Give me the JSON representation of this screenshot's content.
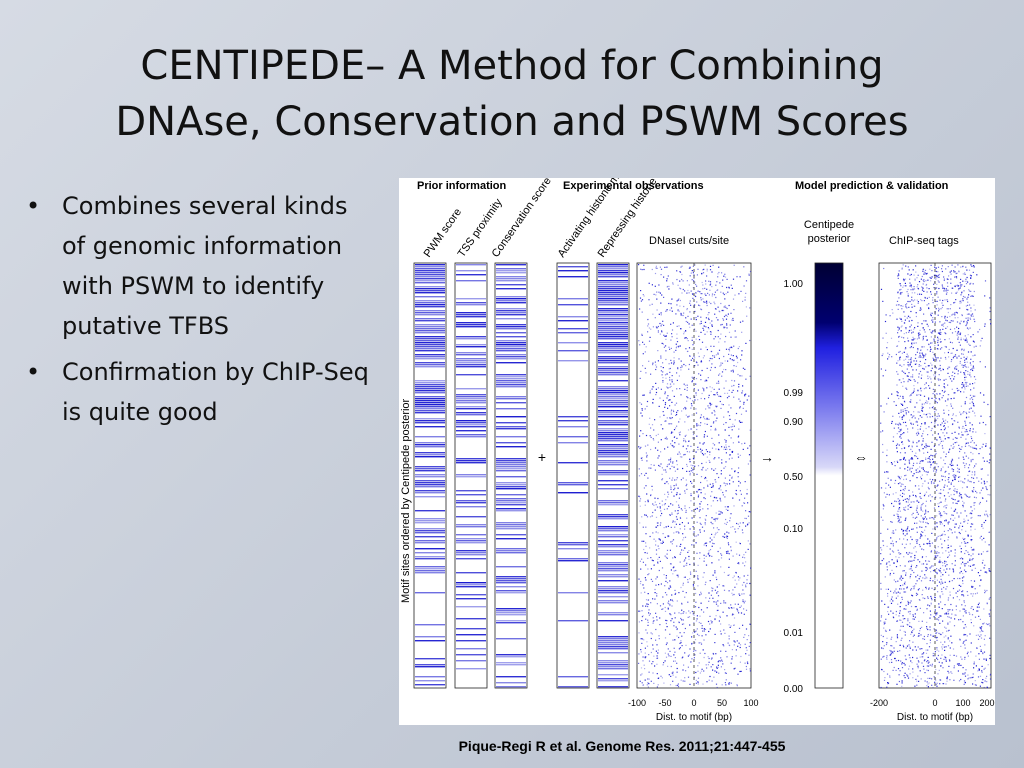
{
  "slide": {
    "title_line1": "CENTIPEDE– A Method for Combining",
    "title_line2": "DNAse, Conservation and PSWM Scores",
    "bullets": [
      "Combines several kinds of genomic information with PSWM to identify putative TFBS",
      "Confirmation by ChIP-Seq is quite good"
    ],
    "citation": "Pique-Regi R et al. Genome Res. 2011;21:447-455"
  },
  "figure": {
    "sections": [
      "Prior information",
      "Experimental observations",
      "Model prediction & validation"
    ],
    "columns": [
      "PWM score",
      "TSS proximity",
      "Conservation score",
      "Activating histone marks",
      "Repressing histone marks"
    ],
    "dnase_label": "DNaseI cuts/site",
    "posterior_label_1": "Centipede",
    "posterior_label_2": "posterior",
    "chip_label": "ChIP-seq tags",
    "y_axis_label": "Motif sites ordered by Centipede posterior",
    "posterior_ticks": [
      "1.00",
      "0.99",
      "0.90",
      "0.50",
      "0.10",
      "0.01",
      "0.00"
    ],
    "dnase_xticks": [
      "-100",
      "-50",
      "0",
      "50",
      "100"
    ],
    "chip_xticks": [
      "-200",
      "0",
      "100",
      "200"
    ],
    "x_axis_label": "Dist. to motif (bp)",
    "plus_sign": "+",
    "arrow_sign": "→",
    "equiv_sign": "⇔",
    "accent_color": "#1a1ad0"
  }
}
